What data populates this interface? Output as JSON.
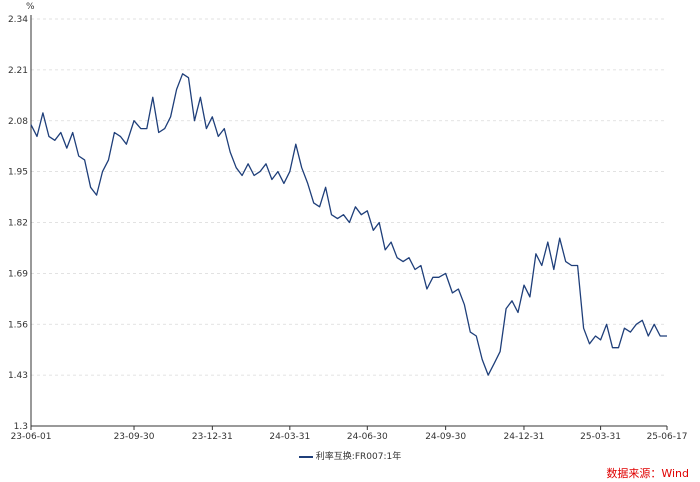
{
  "chart_data": {
    "type": "line",
    "unit_label": "%",
    "ylim": [
      1.3,
      2.34
    ],
    "yticks": [
      1.3,
      1.43,
      1.56,
      1.69,
      1.82,
      1.95,
      2.08,
      2.21,
      2.34
    ],
    "ytick_labels": [
      "1.3",
      "1.43",
      "1.56",
      "1.69",
      "1.82",
      "1.95",
      "2.08",
      "2.21",
      "2.34"
    ],
    "xlim": [
      "2023-06-01",
      "2025-06-17"
    ],
    "xticks": [
      "2023-06-01",
      "2023-09-30",
      "2023-12-31",
      "2024-03-31",
      "2024-06-30",
      "2024-09-30",
      "2024-12-31",
      "2025-03-31",
      "2025-06-17"
    ],
    "xtick_labels": [
      "23-06-01",
      "23-09-30",
      "23-12-31",
      "24-03-31",
      "24-06-30",
      "24-09-30",
      "24-12-31",
      "25-03-31",
      "25-06-17"
    ],
    "grid": "horizontal-dashed",
    "legend_position": "bottom-center",
    "series": [
      {
        "name": "利率互换:FR007:1年",
        "color": "#1f3f7a",
        "x": [
          "2023-06-01",
          "2023-06-08",
          "2023-06-15",
          "2023-06-22",
          "2023-06-29",
          "2023-07-06",
          "2023-07-13",
          "2023-07-20",
          "2023-07-27",
          "2023-08-03",
          "2023-08-10",
          "2023-08-17",
          "2023-08-24",
          "2023-08-31",
          "2023-09-07",
          "2023-09-14",
          "2023-09-21",
          "2023-09-30",
          "2023-10-08",
          "2023-10-15",
          "2023-10-22",
          "2023-10-29",
          "2023-11-05",
          "2023-11-12",
          "2023-11-19",
          "2023-11-26",
          "2023-12-03",
          "2023-12-10",
          "2023-12-17",
          "2023-12-24",
          "2023-12-31",
          "2024-01-07",
          "2024-01-14",
          "2024-01-21",
          "2024-01-28",
          "2024-02-04",
          "2024-02-11",
          "2024-02-18",
          "2024-02-25",
          "2024-03-03",
          "2024-03-10",
          "2024-03-17",
          "2024-03-24",
          "2024-03-31",
          "2024-04-07",
          "2024-04-14",
          "2024-04-21",
          "2024-04-28",
          "2024-05-05",
          "2024-05-12",
          "2024-05-19",
          "2024-05-26",
          "2024-06-02",
          "2024-06-09",
          "2024-06-16",
          "2024-06-23",
          "2024-06-30",
          "2024-07-07",
          "2024-07-14",
          "2024-07-21",
          "2024-07-28",
          "2024-08-04",
          "2024-08-11",
          "2024-08-18",
          "2024-08-25",
          "2024-09-01",
          "2024-09-08",
          "2024-09-15",
          "2024-09-22",
          "2024-09-30",
          "2024-10-08",
          "2024-10-15",
          "2024-10-22",
          "2024-10-29",
          "2024-11-05",
          "2024-11-12",
          "2024-11-19",
          "2024-11-26",
          "2024-12-03",
          "2024-12-10",
          "2024-12-17",
          "2024-12-24",
          "2024-12-31",
          "2025-01-07",
          "2025-01-14",
          "2025-01-21",
          "2025-01-28",
          "2025-02-04",
          "2025-02-11",
          "2025-02-18",
          "2025-02-25",
          "2025-03-04",
          "2025-03-11",
          "2025-03-18",
          "2025-03-25",
          "2025-03-31",
          "2025-04-07",
          "2025-04-14",
          "2025-04-21",
          "2025-04-28",
          "2025-05-05",
          "2025-05-12",
          "2025-05-19",
          "2025-05-26",
          "2025-06-02",
          "2025-06-09",
          "2025-06-17"
        ],
        "values": [
          2.07,
          2.04,
          2.1,
          2.04,
          2.03,
          2.05,
          2.01,
          2.05,
          1.99,
          1.98,
          1.91,
          1.89,
          1.95,
          1.98,
          2.05,
          2.04,
          2.02,
          2.08,
          2.06,
          2.06,
          2.14,
          2.05,
          2.06,
          2.09,
          2.16,
          2.2,
          2.19,
          2.08,
          2.14,
          2.06,
          2.09,
          2.04,
          2.06,
          2.0,
          1.96,
          1.94,
          1.97,
          1.94,
          1.95,
          1.97,
          1.93,
          1.95,
          1.92,
          1.95,
          2.02,
          1.96,
          1.92,
          1.87,
          1.86,
          1.91,
          1.84,
          1.83,
          1.84,
          1.82,
          1.86,
          1.84,
          1.85,
          1.8,
          1.82,
          1.75,
          1.77,
          1.73,
          1.72,
          1.73,
          1.7,
          1.71,
          1.65,
          1.68,
          1.68,
          1.69,
          1.64,
          1.65,
          1.61,
          1.54,
          1.53,
          1.47,
          1.43,
          1.46,
          1.49,
          1.6,
          1.62,
          1.59,
          1.66,
          1.63,
          1.74,
          1.71,
          1.77,
          1.7,
          1.78,
          1.72,
          1.71,
          1.71,
          1.55,
          1.51,
          1.53,
          1.52,
          1.56,
          1.5,
          1.5,
          1.55,
          1.54,
          1.56,
          1.57,
          1.53,
          1.56,
          1.53,
          1.53
        ]
      }
    ]
  },
  "source_text": "数据来源：Wind",
  "source_color": "#e00000"
}
